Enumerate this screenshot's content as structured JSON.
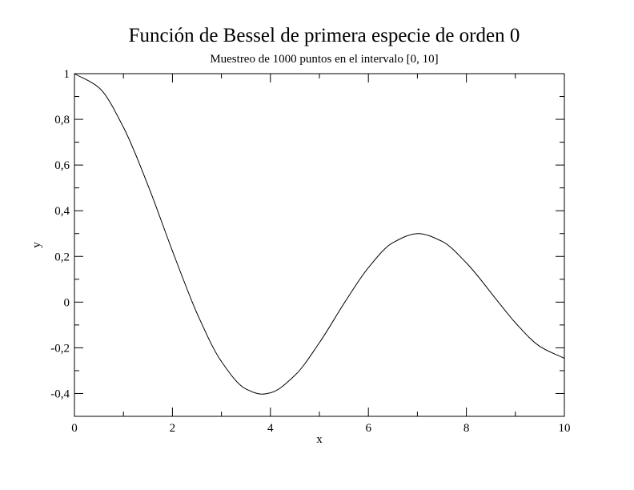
{
  "chart_data": {
    "type": "line",
    "title": "Función de Bessel de primera especie de orden 0",
    "subtitle": "Muestreo de 1000 puntos en el intervalo [0, 10]",
    "xlabel": "x",
    "ylabel": "y",
    "xlim": [
      0,
      10
    ],
    "ylim": [
      -0.5,
      1
    ],
    "x_ticks": [
      0,
      2,
      4,
      6,
      8,
      10
    ],
    "x_tick_labels": [
      "0",
      "2",
      "4",
      "6",
      "8",
      "10"
    ],
    "y_ticks": [
      -0.4,
      -0.2,
      0,
      0.2,
      0.4,
      0.6,
      0.8,
      1
    ],
    "y_tick_labels": [
      "-0,4",
      "-0,2",
      "0",
      "0,2",
      "0,4",
      "0,6",
      "0,8",
      "1"
    ],
    "grid": false,
    "series": [
      {
        "x": [
          0,
          0.5,
          1,
          1.5,
          2,
          2.405,
          2.5,
          3,
          3.5,
          3.832,
          4,
          4.5,
          5,
          5.52,
          6,
          6.5,
          7.016,
          7.5,
          8,
          8.654,
          9,
          9.5,
          10
        ],
        "y": [
          1,
          0.9385,
          0.7652,
          0.5118,
          0.2239,
          0,
          -0.0484,
          -0.2601,
          -0.3801,
          -0.4028,
          -0.3971,
          -0.3205,
          -0.1776,
          0,
          0.1506,
          0.2601,
          0.3001,
          0.2663,
          0.1717,
          0,
          -0.0903,
          -0.1939,
          -0.2459
        ]
      }
    ]
  }
}
